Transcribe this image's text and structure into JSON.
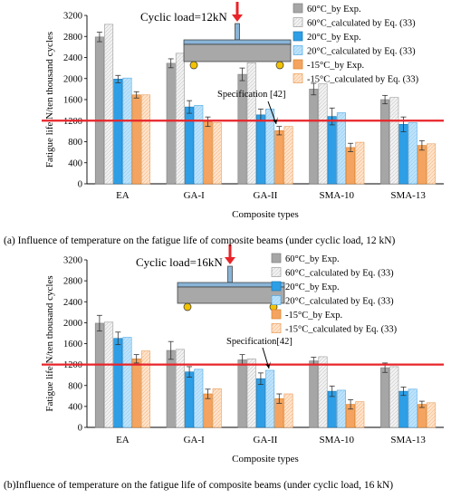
{
  "figure": {
    "captions": [
      "(a) Influence of temperature on the fatigue life of composite beams (under cyclic load, 12 kN)",
      "(b)Influence of temperature on the fatigue life of composite beams (under cyclic load, 16 kN)"
    ]
  },
  "colors": {
    "exp_60": "#a6a6a6",
    "calc_60": "#f2f2f2",
    "exp_20": "#2e9fe6",
    "calc_20": "#bfe3fb",
    "exp_m15": "#f4a460",
    "calc_m15": "#ffe4cc",
    "spec_line": "#e8242a",
    "arrow": "#e8242a",
    "beam_top": "#8ab4d6",
    "beam_body": "#a8a8a8",
    "support": "#f2c200"
  },
  "chart_data": [
    {
      "type": "bar",
      "title": "",
      "load_label": "Cyclic load=12kN",
      "xlabel": "Composite types",
      "ylabel": "Fatigue life  N/ten thousand cycles",
      "ylim": [
        0,
        3200
      ],
      "yticks": [
        0,
        400,
        800,
        1200,
        1600,
        2000,
        2400,
        2800,
        3200
      ],
      "categories": [
        "EA",
        "GA-I",
        "GA-II",
        "SMA-10",
        "SMA-13"
      ],
      "series": [
        {
          "name": "60°C_by Exp.",
          "values": [
            2790,
            2290,
            2080,
            1800,
            1600
          ],
          "errors": [
            90,
            85,
            120,
            110,
            80
          ]
        },
        {
          "name": "60°C_calculated by Eq. (33)",
          "values": [
            3030,
            2480,
            2300,
            1900,
            1640
          ],
          "errors": null
        },
        {
          "name": "20°C_by Exp.",
          "values": [
            1990,
            1460,
            1310,
            1280,
            1130
          ],
          "errors": [
            70,
            120,
            110,
            160,
            140
          ]
        },
        {
          "name": "20°C_calculated by Eq. (33)",
          "values": [
            2010,
            1490,
            1420,
            1350,
            1160
          ],
          "errors": null
        },
        {
          "name": "-15°C_by Exp.",
          "values": [
            1690,
            1180,
            1010,
            690,
            730
          ],
          "errors": [
            60,
            90,
            80,
            80,
            90
          ]
        },
        {
          "name": "-15°C_calculated by Eq. (33)",
          "values": [
            1690,
            1160,
            1090,
            790,
            760
          ],
          "errors": null
        }
      ],
      "reference_line": {
        "label": "Specification [42]",
        "value": 1200
      },
      "legend": "top-right"
    },
    {
      "type": "bar",
      "title": "",
      "load_label": "Cyclic load=16kN",
      "xlabel": "Composite types",
      "ylabel": "Fatigue life  N/ten thousand cycles",
      "ylim": [
        0,
        3200
      ],
      "yticks": [
        0,
        400,
        800,
        1200,
        1600,
        2000,
        2400,
        2800,
        3200
      ],
      "categories": [
        "EA",
        "GA-I",
        "GA-II",
        "SMA-10",
        "SMA-13"
      ],
      "series": [
        {
          "name": "60°C_by Exp.",
          "values": [
            1990,
            1470,
            1290,
            1270,
            1140
          ],
          "errors": [
            150,
            170,
            100,
            70,
            90
          ]
        },
        {
          "name": "60°C_calculated by Eq. (33)",
          "values": [
            2010,
            1490,
            1310,
            1350,
            1160
          ],
          "errors": null
        },
        {
          "name": "20°C_by Exp.",
          "values": [
            1700,
            1060,
            930,
            690,
            690
          ],
          "errors": [
            120,
            100,
            110,
            100,
            80
          ]
        },
        {
          "name": "20°C_calculated by Eq. (33)",
          "values": [
            1720,
            1110,
            1090,
            710,
            730
          ],
          "errors": null
        },
        {
          "name": "-15°C_by Exp.",
          "values": [
            1310,
            640,
            550,
            440,
            440
          ],
          "errors": [
            80,
            90,
            90,
            90,
            60
          ]
        },
        {
          "name": "-15°C_calculated by Eq. (33)",
          "values": [
            1460,
            740,
            640,
            490,
            470
          ],
          "errors": null
        }
      ],
      "reference_line": {
        "label": "Specification[42]",
        "value": 1200
      },
      "legend": "top-right"
    }
  ]
}
